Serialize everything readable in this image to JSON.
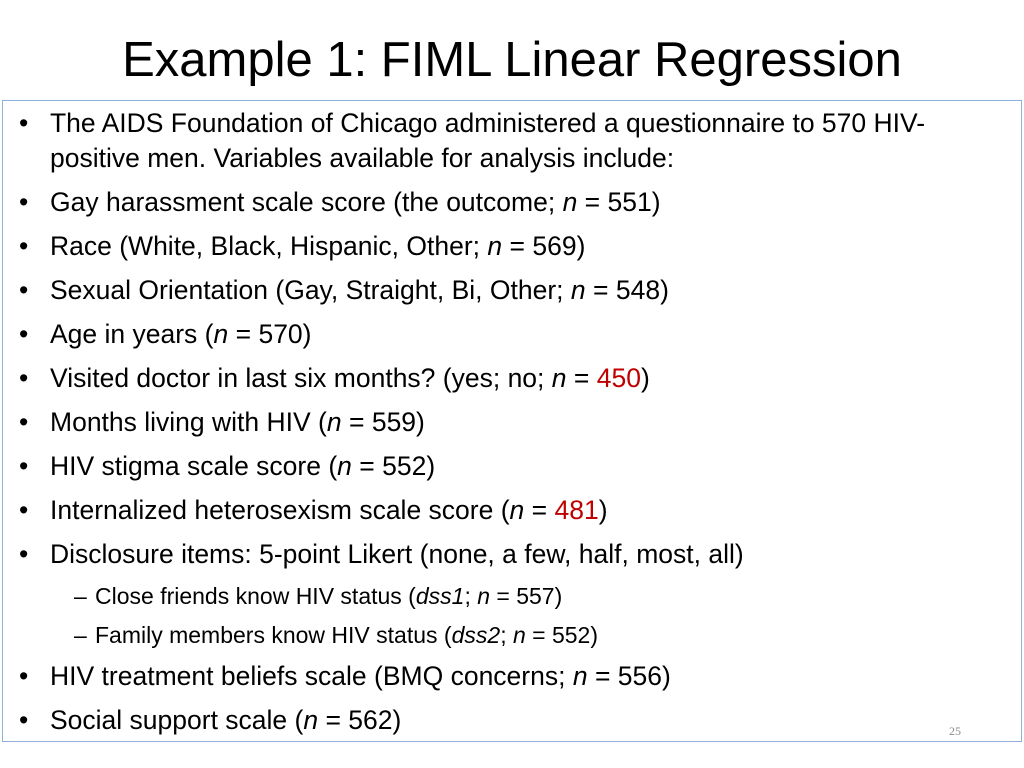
{
  "title": "Example 1: FIML Linear Regression",
  "page_number": "25",
  "accent_color": "#c00000",
  "items": [
    {
      "runs": [
        {
          "text": "The AIDS Foundation of Chicago administered a questionnaire to 570 HIV-positive men. Variables available for analysis include:"
        }
      ]
    },
    {
      "runs": [
        {
          "text": "Gay harassment scale score (the outcome; "
        },
        {
          "text": "n",
          "italic": true
        },
        {
          "text": " = 551)"
        }
      ]
    },
    {
      "runs": [
        {
          "text": "Race (White, Black, Hispanic, Other; "
        },
        {
          "text": "n",
          "italic": true
        },
        {
          "text": " = 569)"
        }
      ]
    },
    {
      "runs": [
        {
          "text": "Sexual Orientation (Gay, Straight, Bi, Other; "
        },
        {
          "text": "n",
          "italic": true
        },
        {
          "text": " = 548)"
        }
      ]
    },
    {
      "runs": [
        {
          "text": "Age in years ("
        },
        {
          "text": "n",
          "italic": true
        },
        {
          "text": " = 570)"
        }
      ]
    },
    {
      "runs": [
        {
          "text": "Visited doctor in last six months? (yes; no; "
        },
        {
          "text": "n",
          "italic": true
        },
        {
          "text": " = "
        },
        {
          "text": "450",
          "accent": true
        },
        {
          "text": ")"
        }
      ]
    },
    {
      "runs": [
        {
          "text": "Months living with HIV ("
        },
        {
          "text": "n",
          "italic": true
        },
        {
          "text": " = 559)"
        }
      ]
    },
    {
      "runs": [
        {
          "text": "HIV stigma scale score ("
        },
        {
          "text": "n",
          "italic": true
        },
        {
          "text": " = 552)"
        }
      ]
    },
    {
      "runs": [
        {
          "text": "Internalized heterosexism scale score ("
        },
        {
          "text": "n",
          "italic": true
        },
        {
          "text": " = "
        },
        {
          "text": "481",
          "accent": true
        },
        {
          "text": ")"
        }
      ]
    },
    {
      "runs": [
        {
          "text": "Disclosure items: 5-point Likert (none, a few, half, most, all)"
        }
      ],
      "sub_items": [
        {
          "runs": [
            {
              "text": "Close friends know HIV status ("
            },
            {
              "text": "dss1",
              "italic": true
            },
            {
              "text": "; "
            },
            {
              "text": "n",
              "italic": true
            },
            {
              "text": " = 557)"
            }
          ]
        },
        {
          "runs": [
            {
              "text": "Family members know HIV status ("
            },
            {
              "text": "dss2",
              "italic": true
            },
            {
              "text": "; "
            },
            {
              "text": "n",
              "italic": true
            },
            {
              "text": " = 552)"
            }
          ]
        }
      ]
    },
    {
      "runs": [
        {
          "text": "HIV treatment beliefs scale (BMQ concerns; "
        },
        {
          "text": "n",
          "italic": true
        },
        {
          "text": " = 556)"
        }
      ]
    },
    {
      "runs": [
        {
          "text": "Social support scale ("
        },
        {
          "text": "n",
          "italic": true
        },
        {
          "text": " = 562)"
        }
      ]
    }
  ]
}
